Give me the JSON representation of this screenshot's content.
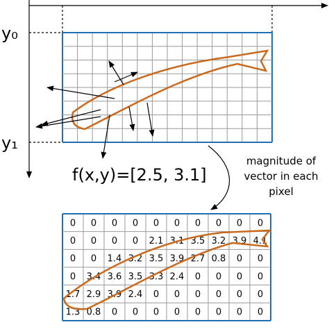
{
  "labels": {
    "y0": "y₀",
    "y1": "y₁",
    "vector": "f(x,y)=[2.5, 3.1]",
    "caption": [
      "magnitude of",
      "vector in each",
      "pixel"
    ]
  },
  "table": {
    "rows": [
      [
        "0",
        "0",
        "0",
        "0",
        "0",
        "0",
        "0",
        "0",
        "0",
        "0"
      ],
      [
        "0",
        "0",
        "0",
        "0",
        "2.1",
        "3.1",
        "3.5",
        "3.2",
        "3.9",
        "4.1"
      ],
      [
        "0",
        "0",
        "1.4",
        "3.2",
        "3.5",
        "3.9",
        "2.7",
        "0.8",
        "0",
        "0"
      ],
      [
        "0",
        "3.4",
        "3.6",
        "3.5",
        "3.3",
        "2.4",
        "0",
        "0",
        "0",
        "0"
      ],
      [
        "1.7",
        "2.9",
        "3.9",
        "2.4",
        "0",
        "0",
        "0",
        "0",
        "0",
        "0"
      ],
      [
        "1.3",
        "0.8",
        "0",
        "0",
        "0",
        "0",
        "0",
        "0",
        "0",
        "0"
      ]
    ]
  }
}
